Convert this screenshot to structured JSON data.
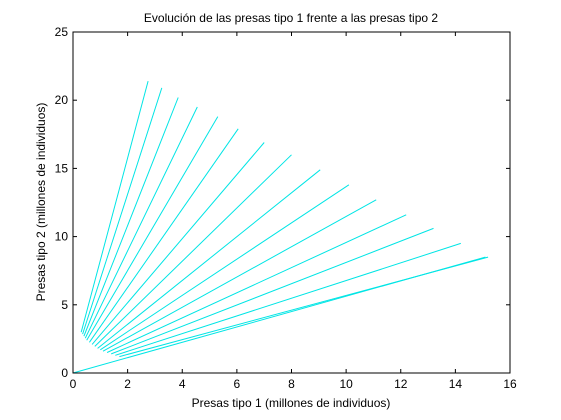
{
  "chart_data": {
    "type": "line",
    "title": "Evolución de las presas tipo 1 frente a las presas tipo 2",
    "xlabel": "Presas tipo 1 (millones de individuos)",
    "ylabel": "Presas tipo 2 (millones de individuos)",
    "xlim": [
      0,
      16
    ],
    "ylim": [
      0,
      25
    ],
    "xticks": [
      "0",
      "2",
      "4",
      "6",
      "8",
      "10",
      "12",
      "14",
      "16"
    ],
    "yticks": [
      "0",
      "5",
      "10",
      "15",
      "20",
      "25"
    ],
    "grid": false,
    "legend": "none",
    "line_color": "#00e5e5",
    "series": [
      {
        "x": [
          0.0,
          15.1
        ],
        "y": [
          0.0,
          8.5
        ]
      },
      {
        "x": [
          0.3,
          2.75
        ],
        "y": [
          3.0,
          21.4
        ]
      },
      {
        "x": [
          0.35,
          3.25
        ],
        "y": [
          2.85,
          20.9
        ]
      },
      {
        "x": [
          0.4,
          3.85
        ],
        "y": [
          2.7,
          20.2
        ]
      },
      {
        "x": [
          0.45,
          4.55
        ],
        "y": [
          2.55,
          19.5
        ]
      },
      {
        "x": [
          0.5,
          5.3
        ],
        "y": [
          2.4,
          18.8
        ]
      },
      {
        "x": [
          0.6,
          6.05
        ],
        "y": [
          2.25,
          17.9
        ]
      },
      {
        "x": [
          0.7,
          7.0
        ],
        "y": [
          2.1,
          16.9
        ]
      },
      {
        "x": [
          0.8,
          8.0
        ],
        "y": [
          1.95,
          16.0
        ]
      },
      {
        "x": [
          0.9,
          9.05
        ],
        "y": [
          1.8,
          14.9
        ]
      },
      {
        "x": [
          1.0,
          10.1
        ],
        "y": [
          1.7,
          13.8
        ]
      },
      {
        "x": [
          1.1,
          11.1
        ],
        "y": [
          1.6,
          12.7
        ]
      },
      {
        "x": [
          1.25,
          12.2
        ],
        "y": [
          1.5,
          11.6
        ]
      },
      {
        "x": [
          1.4,
          13.2
        ],
        "y": [
          1.4,
          10.6
        ]
      },
      {
        "x": [
          1.55,
          14.2
        ],
        "y": [
          1.3,
          9.5
        ]
      },
      {
        "x": [
          1.7,
          15.2
        ],
        "y": [
          1.2,
          8.5
        ]
      }
    ]
  }
}
